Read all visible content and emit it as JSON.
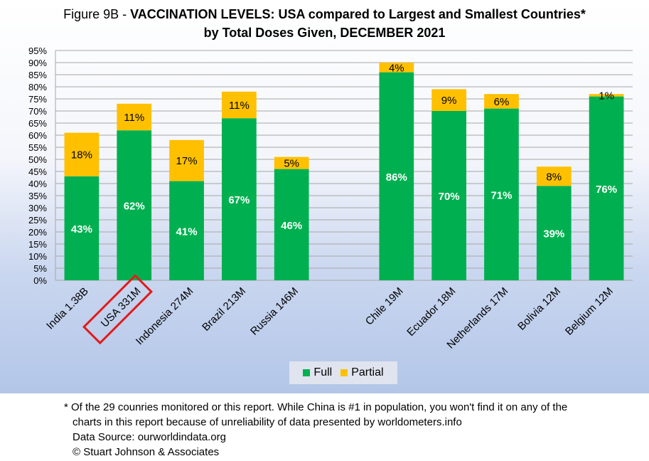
{
  "title": {
    "prefix": "Figure 9B - ",
    "main": "VACCINATION LEVELS:  USA compared to Largest and Smallest Countries*",
    "line2": "by Total Doses Given, DECEMBER 2021"
  },
  "legend": {
    "full": "Full",
    "partial": "Partial"
  },
  "footnote": {
    "line1": "* Of the 29 counries monitored or this report. While China is #1 in population, you won't find it on any of the",
    "line2": "charts in this report because of unreliability of data presented by worldometers.info",
    "line3": "Data Source:  ourworldindata.org",
    "line4": "© Stuart Johnson & Associates"
  },
  "colors": {
    "full": "#00b050",
    "partial": "#ffc000",
    "highlight_box": "#e21b1b"
  },
  "chart_data": {
    "type": "bar",
    "stacked": true,
    "categories": [
      "India 1.38B",
      "USA 331M",
      "Indonesia 274M",
      "Brazil 213M",
      "Russia 146M",
      "",
      "Chile 19M",
      "Ecuador 18M",
      "Netherlands 17M",
      "Bolivia 12M",
      "Belgium 12M"
    ],
    "series": [
      {
        "name": "Full",
        "values": [
          43,
          62,
          41,
          67,
          46,
          null,
          86,
          70,
          71,
          39,
          76
        ],
        "labels": [
          "43%",
          "62%",
          "41%",
          "67%",
          "46%",
          "",
          "86%",
          "70%",
          "71%",
          "39%",
          "76%"
        ]
      },
      {
        "name": "Partial",
        "values": [
          18,
          11,
          17,
          11,
          5,
          null,
          4,
          9,
          6,
          8,
          1
        ],
        "labels": [
          "18%",
          "11%",
          "17%",
          "11%",
          "5%",
          "",
          "4%",
          "9%",
          "6%",
          "8%",
          "1%"
        ]
      }
    ],
    "y_ticks": [
      "0%",
      "5%",
      "10%",
      "15%",
      "20%",
      "25%",
      "30%",
      "35%",
      "40%",
      "45%",
      "50%",
      "55%",
      "60%",
      "65%",
      "70%",
      "75%",
      "80%",
      "85%",
      "90%",
      "95%"
    ],
    "ylim": [
      0,
      95
    ],
    "highlighted_category": "USA 331M",
    "grid": true,
    "legend_position": "bottom"
  }
}
